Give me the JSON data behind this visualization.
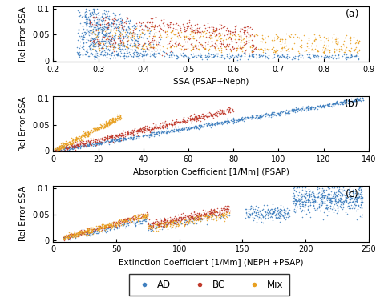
{
  "colors": {
    "AD": "#3F7FBF",
    "BC": "#C0392B",
    "Mix": "#E8A020"
  },
  "panel_a": {
    "xlabel": "SSA (PSAP+Neph)",
    "ylabel": "Rel Error SSA",
    "xlim": [
      0.2,
      0.9
    ],
    "ylim": [
      -0.002,
      0.105
    ],
    "xticks": [
      0.2,
      0.3,
      0.4,
      0.5,
      0.6,
      0.7,
      0.8,
      0.9
    ],
    "yticks": [
      0.0,
      0.05,
      0.1
    ],
    "yticklabels": [
      "0",
      "0.05",
      "0.1"
    ],
    "label": "(a)"
  },
  "panel_b": {
    "xlabel": "Absorption Coefficient [1/Mm] (PSAP)",
    "ylabel": "Rel Error SSA",
    "xlim": [
      0,
      140
    ],
    "ylim": [
      -0.002,
      0.105
    ],
    "xticks": [
      0,
      20,
      40,
      60,
      80,
      100,
      120,
      140
    ],
    "yticks": [
      0.0,
      0.05,
      0.1
    ],
    "yticklabels": [
      "0",
      "0.05",
      "0.1"
    ],
    "label": "(b)"
  },
  "panel_c": {
    "xlabel": "Extinction Coefficient [1/Mm] (NEPH +PSAP)",
    "ylabel": "Rel Error SSA",
    "xlim": [
      0,
      250
    ],
    "ylim": [
      -0.002,
      0.105
    ],
    "xticks": [
      0,
      50,
      100,
      150,
      200,
      250
    ],
    "yticks": [
      0.0,
      0.05,
      0.1
    ],
    "yticklabels": [
      "0",
      "0.05",
      "0.1"
    ],
    "label": "(c)"
  },
  "figsize": [
    4.74,
    3.77
  ],
  "dpi": 100
}
